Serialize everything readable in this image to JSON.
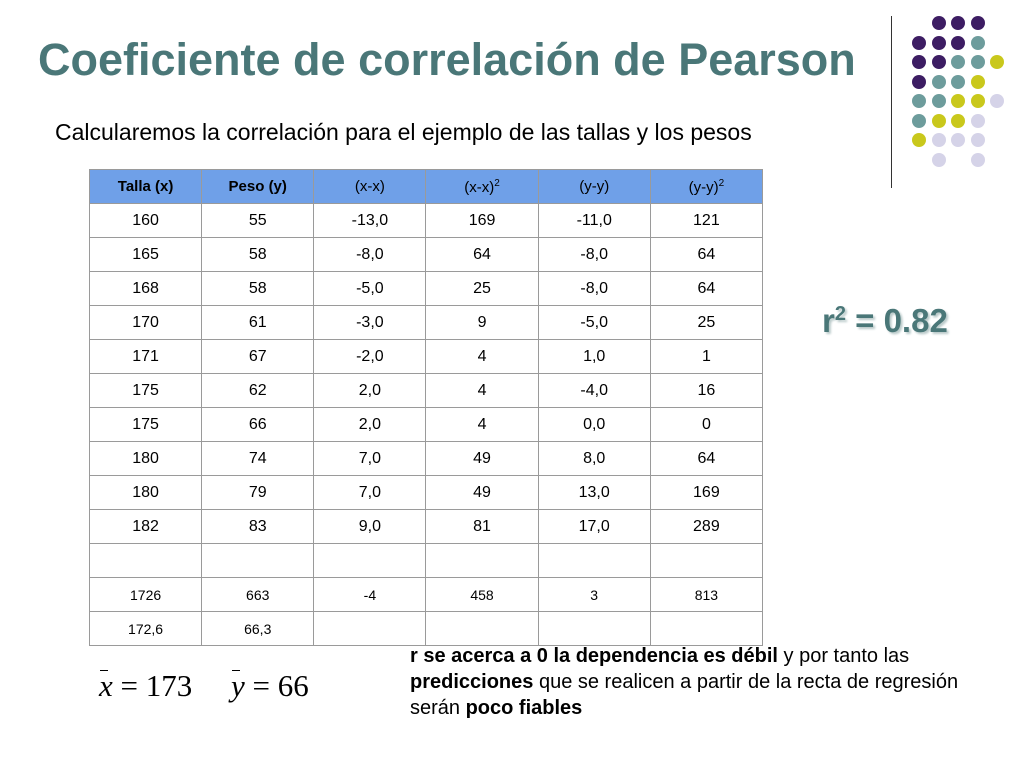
{
  "slide": {
    "title": "Coeficiente de correlación de Pearson",
    "subtitle": "Calcularemos  la correlación para el ejemplo de las tallas y los pesos",
    "accent_color": "#4a7778"
  },
  "table": {
    "headers": [
      {
        "main": "Talla (x)",
        "sup": "",
        "bold": true
      },
      {
        "main": "Peso (y)",
        "sup": "",
        "bold": true
      },
      {
        "main": "(x-x)",
        "sup": "",
        "bold": false
      },
      {
        "main": "(x-x)",
        "sup": "2",
        "bold": false
      },
      {
        "main": "(y-y)",
        "sup": "",
        "bold": false
      },
      {
        "main": "(y-y)",
        "sup": "2",
        "bold": false
      }
    ],
    "rows": [
      [
        "160",
        "55",
        "-13,0",
        "169",
        "-11,0",
        "121"
      ],
      [
        "165",
        "58",
        "-8,0",
        "64",
        "-8,0",
        "64"
      ],
      [
        "168",
        "58",
        "-5,0",
        "25",
        "-8,0",
        "64"
      ],
      [
        "170",
        "61",
        "-3,0",
        "9",
        "-5,0",
        "25"
      ],
      [
        "171",
        "67",
        "-2,0",
        "4",
        "1,0",
        "1"
      ],
      [
        "175",
        "62",
        "2,0",
        "4",
        "-4,0",
        "16"
      ],
      [
        "175",
        "66",
        "2,0",
        "4",
        "0,0",
        "0"
      ],
      [
        "180",
        "74",
        "7,0",
        "49",
        "8,0",
        "64"
      ],
      [
        "180",
        "79",
        "7,0",
        "49",
        "13,0",
        "169"
      ],
      [
        "182",
        "83",
        "9,0",
        "81",
        "17,0",
        "289"
      ]
    ],
    "empty_row": [
      "",
      "",
      "",
      "",
      "",
      ""
    ],
    "totals": [
      "1726",
      "663",
      "-4",
      "458",
      "3",
      "813"
    ],
    "means": [
      "172,6",
      "66,3",
      "",
      "",
      "",
      ""
    ],
    "header_color": "#6fa0e8"
  },
  "r_squared": {
    "prefix": "r",
    "sup": "2",
    "rest": " = 0.82"
  },
  "mean_x": {
    "var": "x",
    "eq": " = 173"
  },
  "mean_y": {
    "var": "y",
    "eq": " = 66"
  },
  "note": {
    "part1": "r se acerca a 0 la dependencia es débil",
    "part2": " y por tanto las ",
    "part3": "predicciones",
    "part4": " que se realicen a partir de la recta de regresión serán ",
    "part5": "poco fiables"
  },
  "decoration": {
    "purple": "#3d1d63",
    "teal": "#6d9c9c",
    "yellow": "#c9c81c",
    "lavender": "#d5d3e8"
  }
}
